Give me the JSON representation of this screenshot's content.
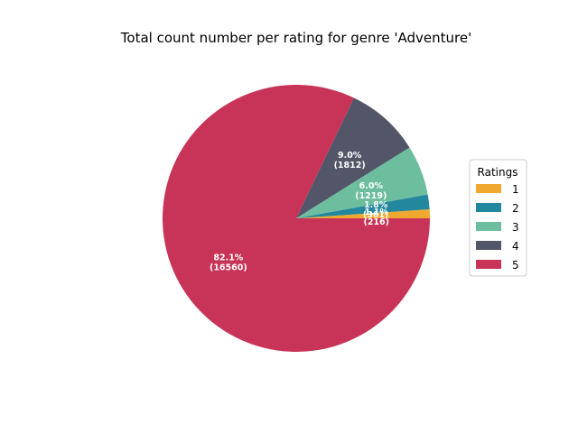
{
  "chart_data": {
    "type": "pie",
    "title": "Total count number per rating for genre 'Adventure'",
    "legend_title": "Ratings",
    "legend_position": "right",
    "categories": [
      "1",
      "2",
      "3",
      "4",
      "5"
    ],
    "values": [
      216,
      361,
      1219,
      1812,
      16560
    ],
    "percent_labels": [
      "1.1%",
      "1.8%",
      "6.0%",
      "9.0%",
      "82.1%"
    ],
    "count_labels": [
      "(216)",
      "(361)",
      "(1219)",
      "(1812)",
      "(16560)"
    ],
    "colors": [
      "#f0a830",
      "#23879e",
      "#6cbe9e",
      "#535569",
      "#c83458"
    ]
  }
}
